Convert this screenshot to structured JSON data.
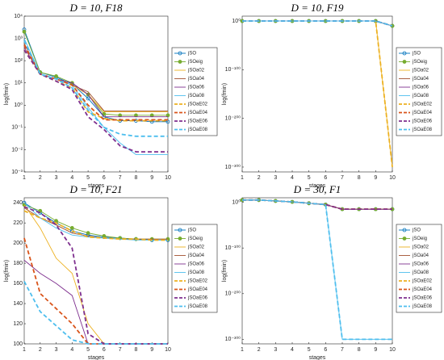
{
  "chart_data": [
    {
      "type": "line",
      "title": "D = 10, F18",
      "xlabel": "stages",
      "ylabel": "log(fmin)",
      "yscale": "log",
      "legend": "right",
      "x": [
        1,
        2,
        3,
        4,
        5,
        6,
        7,
        8,
        9,
        10
      ],
      "xlim": [
        1,
        10
      ],
      "xticks": [
        1,
        2,
        3,
        4,
        5,
        6,
        7,
        8,
        9,
        10
      ],
      "ylim": [
        0.001,
        10000
      ],
      "yticks": [
        {
          "value": 0.001,
          "label": "10⁻³"
        },
        {
          "value": 0.01,
          "label": "10⁻²"
        },
        {
          "value": 0.1,
          "label": "10⁻¹"
        },
        {
          "value": 1,
          "label": "10⁰"
        },
        {
          "value": 10,
          "label": "10¹"
        },
        {
          "value": 100,
          "label": "10²"
        },
        {
          "value": 1000,
          "label": "10³"
        },
        {
          "value": 10000,
          "label": "10⁴"
        }
      ],
      "series": [
        {
          "name": "jSO",
          "color": "#0072bd",
          "marker": true,
          "values": [
            2500,
            30,
            18,
            9,
            2,
            0.3,
            0.2,
            0.2,
            0.18,
            0.18
          ]
        },
        {
          "name": "jSOeig",
          "color": "#77ac30",
          "marker": true,
          "values": [
            2000,
            30,
            20,
            10,
            3,
            0.4,
            0.35,
            0.35,
            0.35,
            0.35
          ]
        },
        {
          "name": "jSOa02",
          "color": "#edb120",
          "values": [
            400,
            25,
            15,
            8,
            3,
            0.5,
            0.5,
            0.5,
            0.5,
            0.5
          ]
        },
        {
          "name": "jSOa04",
          "color": "#a2502f",
          "values": [
            600,
            25,
            15,
            8,
            4,
            0.55,
            0.55,
            0.55,
            0.55,
            0.55
          ]
        },
        {
          "name": "jSOa06",
          "color": "#7e2f8e",
          "values": [
            400,
            25,
            15,
            10,
            3,
            0.3,
            0.3,
            0.3,
            0.3,
            0.3
          ]
        },
        {
          "name": "jSOa08",
          "color": "#4dbeee",
          "values": [
            1000,
            25,
            15,
            8,
            0.8,
            0.1,
            0.02,
            0.006,
            0.006,
            0.006
          ]
        },
        {
          "name": "jSOaE02",
          "color": "#edb120",
          "dash": true,
          "values": [
            300,
            25,
            12,
            6,
            0.5,
            0.25,
            0.2,
            0.2,
            0.2,
            0.2
          ]
        },
        {
          "name": "jSOaE04",
          "color": "#d95319",
          "dash": true,
          "values": [
            500,
            25,
            15,
            8,
            1,
            0.22,
            0.22,
            0.22,
            0.22,
            0.22
          ]
        },
        {
          "name": "jSOaE06",
          "color": "#7e2f8e",
          "dash": true,
          "values": [
            300,
            25,
            12,
            5,
            0.3,
            0.08,
            0.015,
            0.008,
            0.008,
            0.008
          ]
        },
        {
          "name": "jSOaE08",
          "color": "#4dbeee",
          "dash": true,
          "values": [
            800,
            25,
            15,
            6,
            0.6,
            0.1,
            0.05,
            0.04,
            0.04,
            0.04
          ]
        }
      ]
    },
    {
      "type": "line",
      "title": "D = 10, F19",
      "xlabel": "stages",
      "ylabel": "log(fmin)",
      "yscale": "log",
      "legend": "right",
      "x": [
        1,
        2,
        3,
        4,
        5,
        6,
        7,
        8,
        9,
        10
      ],
      "xlim": [
        1,
        10
      ],
      "xticks": [
        1,
        2,
        3,
        4,
        5,
        6,
        7,
        8,
        9,
        10
      ],
      "ylim": [
        1e-310,
        10000000000.0
      ],
      "yticks": [
        {
          "value": 1e-300,
          "label": "10⁻³⁰⁰"
        },
        {
          "value": 1e-200,
          "label": "10⁻²⁰⁰"
        },
        {
          "value": 1e-100,
          "label": "10⁻¹⁰⁰"
        },
        {
          "value": 1,
          "label": "10⁰"
        }
      ],
      "series": [
        {
          "name": "jSO",
          "color": "#0072bd",
          "marker": true,
          "values": [
            1,
            1,
            1,
            1,
            1,
            1,
            1,
            1,
            1,
            1e-10
          ]
        },
        {
          "name": "jSOeig",
          "color": "#77ac30",
          "marker": true,
          "values": [
            1,
            1,
            1,
            1,
            1,
            1,
            1,
            1,
            1,
            1e-10
          ]
        },
        {
          "name": "jSOa02",
          "color": "#edb120",
          "values": [
            1,
            1,
            1,
            1,
            1,
            1,
            1,
            1,
            1,
            1e-300
          ]
        },
        {
          "name": "jSOa04",
          "color": "#a2502f",
          "values": [
            1,
            1,
            1,
            1,
            1,
            1,
            1,
            1,
            1,
            1e-10
          ]
        },
        {
          "name": "jSOa06",
          "color": "#7e2f8e",
          "values": [
            1,
            1,
            1,
            1,
            1,
            1,
            1,
            1,
            1,
            1e-10
          ]
        },
        {
          "name": "jSOa08",
          "color": "#4dbeee",
          "values": [
            1,
            1,
            1,
            1,
            1,
            1,
            1,
            1,
            1,
            1e-10
          ]
        },
        {
          "name": "jSOaE02",
          "color": "#edb120",
          "dash": true,
          "values": [
            1,
            1,
            1,
            1,
            1,
            1,
            1,
            1,
            1,
            1e-300
          ]
        },
        {
          "name": "jSOaE04",
          "color": "#d95319",
          "dash": true,
          "values": [
            1,
            1,
            1,
            1,
            1,
            1,
            1,
            1,
            1,
            1e-10
          ]
        },
        {
          "name": "jSOaE06",
          "color": "#7e2f8e",
          "dash": true,
          "values": [
            1,
            1,
            1,
            1,
            1,
            1,
            1,
            1,
            1,
            1e-10
          ]
        },
        {
          "name": "jSOaE08",
          "color": "#4dbeee",
          "dash": true,
          "values": [
            1,
            1,
            1,
            1,
            1,
            1,
            1,
            1,
            1,
            1e-10
          ]
        }
      ]
    },
    {
      "type": "line",
      "title": "D = 10, F21",
      "xlabel": "stages",
      "ylabel": "log(fmin)",
      "yscale": "linear",
      "legend": "right",
      "x": [
        1,
        2,
        3,
        4,
        5,
        6,
        7,
        8,
        9,
        10
      ],
      "xlim": [
        1,
        10
      ],
      "xticks": [
        1,
        2,
        3,
        4,
        5,
        6,
        7,
        8,
        9,
        10
      ],
      "ylim": [
        100,
        245
      ],
      "yticks": [
        100,
        120,
        140,
        160,
        180,
        200,
        220,
        240
      ],
      "series": [
        {
          "name": "jSO",
          "color": "#0072bd",
          "marker": true,
          "values": [
            240,
            230,
            220,
            212,
            208,
            206,
            205,
            204,
            203,
            203
          ]
        },
        {
          "name": "jSOeig",
          "color": "#77ac30",
          "marker": true,
          "values": [
            238,
            232,
            222,
            215,
            210,
            207,
            205,
            204,
            204,
            204
          ]
        },
        {
          "name": "jSOa02",
          "color": "#edb120",
          "values": [
            238,
            215,
            185,
            170,
            120,
            100,
            100,
            100,
            100,
            100
          ]
        },
        {
          "name": "jSOa04",
          "color": "#a2502f",
          "values": [
            235,
            225,
            218,
            210,
            207,
            205,
            204,
            204,
            204,
            204
          ]
        },
        {
          "name": "jSOa06",
          "color": "#7e2f8e",
          "values": [
            183,
            170,
            160,
            148,
            100,
            100,
            100,
            100,
            100,
            100
          ]
        },
        {
          "name": "jSOa08",
          "color": "#4dbeee",
          "values": [
            240,
            225,
            215,
            208,
            206,
            205,
            204,
            203,
            203,
            203
          ]
        },
        {
          "name": "jSOaE02",
          "color": "#edb120",
          "dash": true,
          "values": [
            232,
            225,
            220,
            212,
            206,
            205,
            204,
            204,
            203,
            203
          ]
        },
        {
          "name": "jSOaE04",
          "color": "#d95319",
          "dash": true,
          "values": [
            205,
            150,
            135,
            120,
            100,
            100,
            100,
            100,
            100,
            100
          ]
        },
        {
          "name": "jSOaE06",
          "color": "#7e2f8e",
          "dash": true,
          "values": [
            236,
            230,
            218,
            195,
            110,
            100,
            100,
            100,
            100,
            100
          ]
        },
        {
          "name": "jSOaE08",
          "color": "#4dbeee",
          "dash": true,
          "values": [
            162,
            132,
            118,
            104,
            100,
            100,
            100,
            100,
            100,
            100
          ]
        }
      ]
    },
    {
      "type": "line",
      "title": "D = 30, F1",
      "xlabel": "stages",
      "ylabel": "log(fmin)",
      "yscale": "log",
      "legend": "right",
      "x": [
        1,
        2,
        3,
        4,
        5,
        6,
        7,
        8,
        9,
        10
      ],
      "xlim": [
        1,
        10
      ],
      "xticks": [
        1,
        2,
        3,
        4,
        5,
        6,
        7,
        8,
        9,
        10
      ],
      "ylim": [
        1e-310,
        10000000000.0
      ],
      "yticks": [
        {
          "value": 1e-300,
          "label": "10⁻³⁰⁰"
        },
        {
          "value": 1e-200,
          "label": "10⁻²⁰⁰"
        },
        {
          "value": 1e-100,
          "label": "10⁻¹⁰⁰"
        },
        {
          "value": 1,
          "label": "10⁰"
        }
      ],
      "series": [
        {
          "name": "jSO",
          "color": "#0072bd",
          "marker": true,
          "values": [
            100000.0,
            100000.0,
            1000.0,
            10.0,
            0.01,
            1e-05,
            1e-15,
            1e-15,
            1e-15,
            1e-15
          ]
        },
        {
          "name": "jSOeig",
          "color": "#77ac30",
          "marker": true,
          "values": [
            100000.0,
            100000.0,
            1000.0,
            10.0,
            0.01,
            1e-05,
            1e-15,
            1e-15,
            1e-15,
            1e-15
          ]
        },
        {
          "name": "jSOa02",
          "color": "#edb120",
          "values": [
            100000.0,
            100000.0,
            1000.0,
            10.0,
            0.01,
            1e-05,
            1e-15,
            1e-15,
            1e-15,
            1e-15
          ]
        },
        {
          "name": "jSOa04",
          "color": "#a2502f",
          "values": [
            100000.0,
            100000.0,
            1000.0,
            10.0,
            0.01,
            1e-05,
            1e-15,
            1e-15,
            1e-15,
            1e-15
          ]
        },
        {
          "name": "jSOa06",
          "color": "#7e2f8e",
          "values": [
            100000.0,
            100000.0,
            1000.0,
            10.0,
            0.01,
            1e-05,
            1e-15,
            1e-15,
            1e-15,
            1e-15
          ]
        },
        {
          "name": "jSOa08",
          "color": "#4dbeee",
          "values": [
            100000.0,
            100000.0,
            1000.0,
            10.0,
            0.01,
            1e-05,
            1e-300,
            1e-300,
            1e-300,
            1e-300
          ]
        },
        {
          "name": "jSOaE02",
          "color": "#edb120",
          "dash": true,
          "values": [
            100000.0,
            100000.0,
            1000.0,
            10.0,
            0.01,
            1e-05,
            1e-15,
            1e-15,
            1e-15,
            1e-15
          ]
        },
        {
          "name": "jSOaE04",
          "color": "#d95319",
          "dash": true,
          "values": [
            100000.0,
            100000.0,
            1000.0,
            10.0,
            0.01,
            1e-05,
            1e-15,
            1e-15,
            1e-15,
            1e-15
          ]
        },
        {
          "name": "jSOaE06",
          "color": "#7e2f8e",
          "dash": true,
          "values": [
            100000.0,
            100000.0,
            1000.0,
            10.0,
            0.01,
            1e-05,
            1e-15,
            1e-15,
            1e-15,
            1e-15
          ]
        },
        {
          "name": "jSOaE08",
          "color": "#4dbeee",
          "dash": true,
          "values": [
            100000.0,
            100000.0,
            1000.0,
            10.0,
            0.01,
            1e-05,
            1e-300,
            1e-300,
            1e-300,
            1e-300
          ]
        }
      ]
    }
  ]
}
